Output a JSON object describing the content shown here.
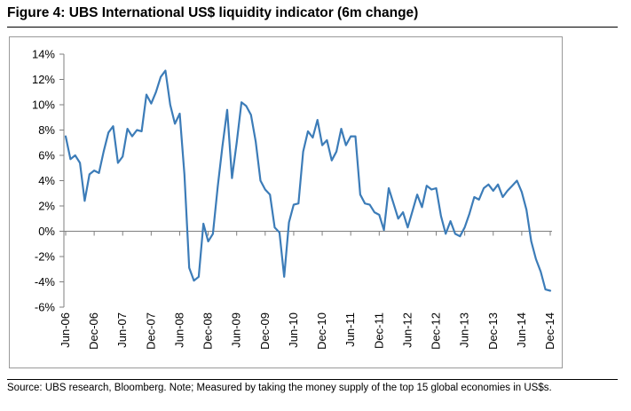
{
  "title": "Figure 4: UBS International US$ liquidity indicator (6m change)",
  "source": "Source:  UBS research, Bloomberg. Note; Measured by taking the money supply of the top 15 global economies in US$s.",
  "colors": {
    "line": "#3c7cb8",
    "axis": "#7f7f7f"
  },
  "chart_data": {
    "type": "line",
    "title": "UBS International US$ liquidity indicator (6m change)",
    "xlabel": "",
    "ylabel": "",
    "ylim": [
      -6,
      14
    ],
    "ytick_values": [
      -6,
      -4,
      -2,
      0,
      2,
      4,
      6,
      8,
      10,
      12,
      14
    ],
    "ytick_labels": [
      "-6%",
      "-4%",
      "-2%",
      "0%",
      "2%",
      "4%",
      "6%",
      "8%",
      "10%",
      "12%",
      "14%"
    ],
    "x_start": "Jun-06",
    "x_end": "Jan-15",
    "xtick_labels": [
      "Jun-06",
      "Dec-06",
      "Jun-07",
      "Dec-07",
      "Jun-08",
      "Dec-08",
      "Jun-09",
      "Dec-09",
      "Jun-10",
      "Dec-10",
      "Jun-11",
      "Dec-11",
      "Jun-12",
      "Dec-12",
      "Jun-13",
      "Dec-13",
      "Jun-14",
      "Dec-14"
    ],
    "grid": false,
    "legend": "none",
    "series": [
      {
        "name": "UBS International US$ liquidity indicator (6m change)",
        "values": [
          7.5,
          5.7,
          6.0,
          5.4,
          2.4,
          4.5,
          4.8,
          4.6,
          6.3,
          7.8,
          8.3,
          5.4,
          5.9,
          8.1,
          7.5,
          8.0,
          7.9,
          10.8,
          10.1,
          11.0,
          12.2,
          12.7,
          10.0,
          8.5,
          9.3,
          4.5,
          -2.9,
          -3.9,
          -3.6,
          0.6,
          -0.8,
          -0.2,
          3.5,
          6.7,
          9.6,
          4.2,
          7.0,
          10.2,
          9.9,
          9.2,
          7.1,
          4.0,
          3.3,
          2.9,
          0.3,
          -0.1,
          -3.6,
          0.7,
          2.1,
          2.2,
          6.3,
          7.9,
          7.4,
          8.8,
          6.8,
          7.2,
          5.6,
          6.3,
          8.1,
          6.8,
          7.5,
          7.5,
          2.9,
          2.2,
          2.1,
          1.5,
          1.3,
          0.1,
          3.4,
          2.2,
          1.0,
          1.5,
          0.3,
          1.6,
          2.9,
          1.9,
          3.6,
          3.3,
          3.4,
          1.2,
          -0.2,
          0.8,
          -0.2,
          -0.4,
          0.3,
          1.4,
          2.7,
          2.5,
          3.4,
          3.7,
          3.2,
          3.7,
          2.7,
          3.2,
          3.6,
          4.0,
          3.1,
          1.7,
          -0.8,
          -2.2,
          -3.2,
          -4.6,
          -4.7
        ]
      }
    ]
  }
}
